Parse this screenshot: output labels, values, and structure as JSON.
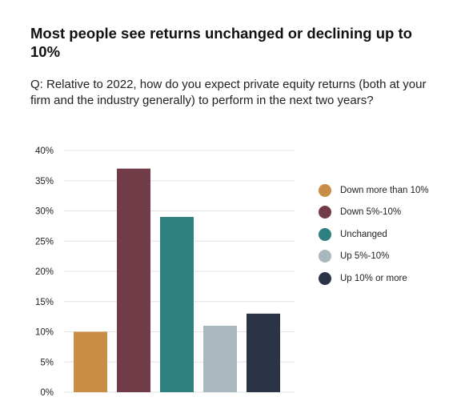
{
  "title": "Most people see returns unchanged or declining up to 10%",
  "subtitle": "Q: Relative to 2022, how do you expect private equity returns (both at your firm and the industry generally) to perform in the next two years?",
  "chart_data": {
    "type": "bar",
    "title": "",
    "xlabel": "",
    "ylabel": "",
    "ylim": [
      0,
      40
    ],
    "yticks": [
      0,
      5,
      10,
      15,
      20,
      25,
      30,
      35,
      40
    ],
    "ytick_labels": [
      "0%",
      "5%",
      "10%",
      "15%",
      "20%",
      "25%",
      "30%",
      "35%",
      "40%"
    ],
    "grid": true,
    "legend_position": "right",
    "categories": [
      "Down more than 10%",
      "Down 5%-10%",
      "Unchanged",
      "Up 5%-10%",
      "Up 10% or more"
    ],
    "values": [
      10,
      37,
      29,
      11,
      13
    ],
    "colors": [
      "#C98E45",
      "#723B48",
      "#2E7F7F",
      "#A9B8BE",
      "#2B3447"
    ]
  }
}
